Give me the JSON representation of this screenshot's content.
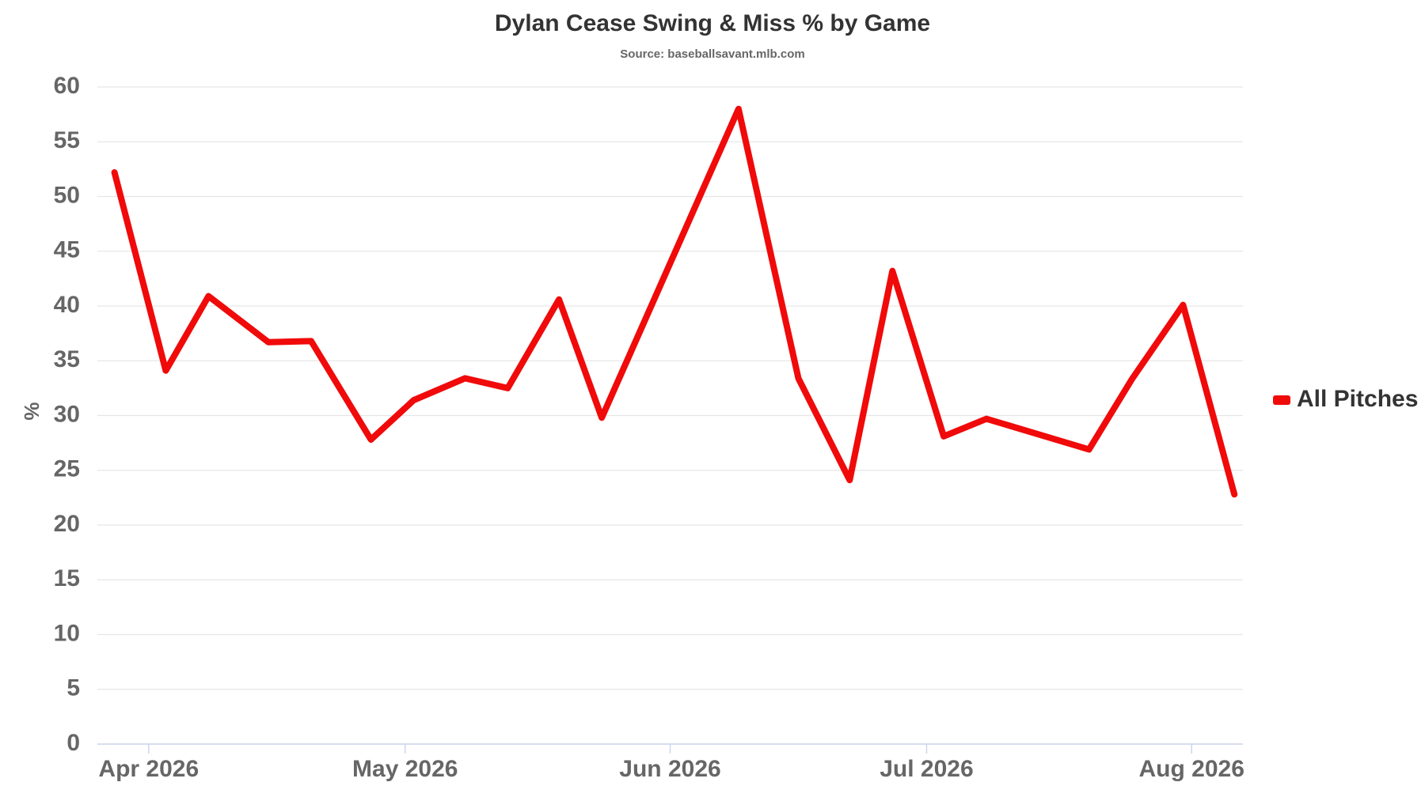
{
  "chart_data": {
    "type": "line",
    "title": "Dylan Cease Swing & Miss % by Game",
    "subtitle": "Source: baseballsavant.mlb.com",
    "y_label": "%",
    "x": [
      "2026-03-28",
      "2026-04-03",
      "2026-04-08",
      "2026-04-15",
      "2026-04-20",
      "2026-04-27",
      "2026-05-02",
      "2026-05-08",
      "2026-05-13",
      "2026-05-19",
      "2026-05-24",
      "2026-06-09",
      "2026-06-16",
      "2026-06-22",
      "2026-06-27",
      "2026-07-03",
      "2026-07-08",
      "2026-07-20",
      "2026-07-25",
      "2026-07-31",
      "2026-08-06"
    ],
    "series": [
      {
        "name": "All Pitches",
        "color": "#f00a0a",
        "values": [
          52.2,
          34.1,
          40.9,
          36.7,
          36.8,
          27.8,
          31.4,
          33.4,
          32.5,
          40.6,
          29.8,
          58.0,
          33.4,
          24.1,
          43.2,
          28.1,
          29.7,
          26.9,
          33.3,
          40.1,
          22.8
        ]
      }
    ],
    "xlim": [
      "2026-03-26",
      "2026-08-07"
    ],
    "xticks": [
      {
        "value": "2026-04-01",
        "label": "Apr 2026"
      },
      {
        "value": "2026-05-01",
        "label": "May 2026"
      },
      {
        "value": "2026-06-01",
        "label": "Jun 2026"
      },
      {
        "value": "2026-07-01",
        "label": "Jul 2026"
      },
      {
        "value": "2026-08-01",
        "label": "Aug 2026"
      }
    ],
    "ylim": [
      0,
      60
    ],
    "yticks": [
      0,
      5,
      10,
      15,
      20,
      25,
      30,
      35,
      40,
      45,
      50,
      55,
      60
    ],
    "grid": true,
    "legend": "right"
  }
}
